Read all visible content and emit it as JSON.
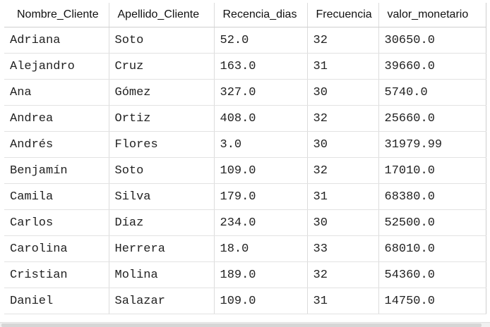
{
  "table": {
    "columns": [
      "Nombre_Cliente",
      "Apellido_Cliente",
      "Recencia_dias",
      "Frecuencia",
      "valor_monetario"
    ],
    "rows": [
      [
        "Adriana",
        "Soto",
        "52.0",
        "32",
        "30650.0"
      ],
      [
        "Alejandro",
        "Cruz",
        "163.0",
        "31",
        "39660.0"
      ],
      [
        "Ana",
        "Gómez",
        "327.0",
        "30",
        "5740.0"
      ],
      [
        "Andrea",
        "Ortiz",
        "408.0",
        "32",
        "25660.0"
      ],
      [
        "Andrés",
        "Flores",
        "3.0",
        "30",
        "31979.99"
      ],
      [
        "Benjamín",
        "Soto",
        "109.0",
        "32",
        "17010.0"
      ],
      [
        "Camila",
        "Silva",
        "179.0",
        "31",
        "68380.0"
      ],
      [
        "Carlos",
        "Díaz",
        "234.0",
        "30",
        "52500.0"
      ],
      [
        "Carolina",
        "Herrera",
        "18.0",
        "33",
        "68010.0"
      ],
      [
        "Cristian",
        "Molina",
        "189.0",
        "32",
        "54360.0"
      ],
      [
        "Daniel",
        "Salazar",
        "109.0",
        "31",
        "14750.0"
      ]
    ]
  }
}
